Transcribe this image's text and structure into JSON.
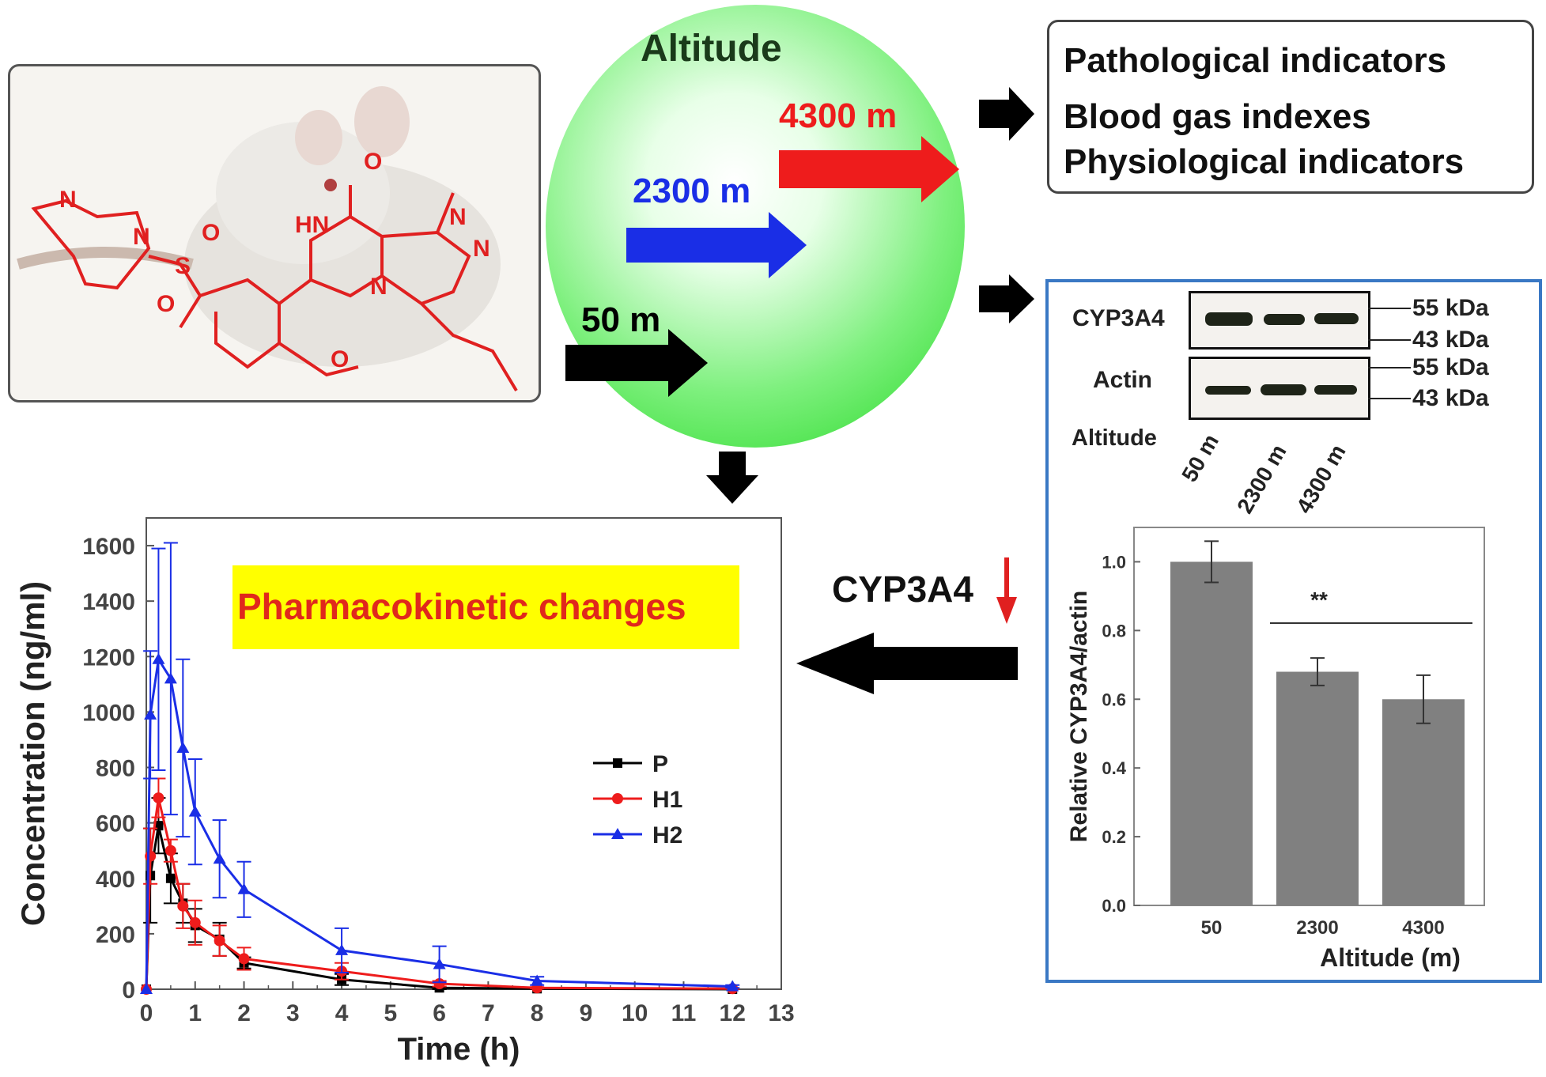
{
  "rat_panel": {
    "structure_atoms": [
      "N",
      "N",
      "S",
      "O",
      "O",
      "O",
      "HN",
      "N",
      "N",
      "N",
      "O"
    ]
  },
  "altitude_circle": {
    "title": "Altitude",
    "levels": [
      {
        "label": "4300 m",
        "color": "#ee1c1c"
      },
      {
        "label": "2300 m",
        "color": "#1a2ee6"
      },
      {
        "label": "50 m",
        "color": "#000000"
      }
    ]
  },
  "outcomes": {
    "lines": [
      "Pathological indicators",
      "Blood gas indexes",
      "Physiological indicators"
    ]
  },
  "mechanism": {
    "label": "CYP3A4",
    "direction": "down"
  },
  "western_blot": {
    "rows": [
      "CYP3A4",
      "Actin"
    ],
    "markers": [
      "55 kDa",
      "43 kDa",
      "55 kDa",
      "43 kDa"
    ],
    "lane_header": "Altitude",
    "lanes": [
      "50 m",
      "2300 m",
      "4300 m"
    ]
  },
  "pk_banner": "Pharmacokinetic changes",
  "chart_data": [
    {
      "type": "line",
      "title": "",
      "xlabel": "Time (h)",
      "ylabel": "Concentration (ng/ml)",
      "xlim": [
        0,
        13
      ],
      "ylim": [
        0,
        1700
      ],
      "xticks": [
        0,
        1,
        2,
        3,
        4,
        5,
        6,
        7,
        8,
        9,
        10,
        11,
        12,
        13
      ],
      "yticks": [
        0,
        200,
        400,
        600,
        800,
        1000,
        1200,
        1400,
        1600
      ],
      "legend_placement": "center-right",
      "x": [
        0,
        0.083,
        0.25,
        0.5,
        0.75,
        1,
        1.5,
        2,
        4,
        6,
        8,
        12
      ],
      "series": [
        {
          "name": "P",
          "color": "#000000",
          "marker": "square",
          "values": [
            0,
            410,
            590,
            400,
            310,
            230,
            180,
            95,
            35,
            5,
            2,
            0
          ],
          "errors": [
            0,
            170,
            100,
            90,
            70,
            60,
            60,
            20,
            20,
            5,
            2,
            0
          ]
        },
        {
          "name": "H1",
          "color": "#ee1c1c",
          "marker": "circle",
          "values": [
            0,
            480,
            690,
            500,
            300,
            240,
            175,
            110,
            65,
            20,
            5,
            2
          ],
          "errors": [
            0,
            100,
            70,
            40,
            80,
            80,
            55,
            40,
            30,
            10,
            3,
            1
          ]
        },
        {
          "name": "H2",
          "color": "#1a2ee6",
          "marker": "triangle",
          "values": [
            0,
            990,
            1190,
            1120,
            870,
            640,
            470,
            360,
            140,
            90,
            30,
            10
          ],
          "errors": [
            0,
            230,
            400,
            490,
            320,
            190,
            140,
            100,
            80,
            65,
            15,
            5
          ]
        }
      ]
    },
    {
      "type": "bar",
      "title": "",
      "xlabel": "Altitude (m)",
      "ylabel": "Relative CYP3A4/actin",
      "categories": [
        "50",
        "2300",
        "4300"
      ],
      "values": [
        1.0,
        0.68,
        0.6
      ],
      "errors": [
        0.06,
        0.04,
        0.07
      ],
      "ylim": [
        0,
        1.1
      ],
      "yticks": [
        "0.0",
        "0.2",
        "0.4",
        "0.6",
        "0.8",
        "1.0"
      ],
      "bar_color": "#808080",
      "annotation": "**"
    }
  ]
}
